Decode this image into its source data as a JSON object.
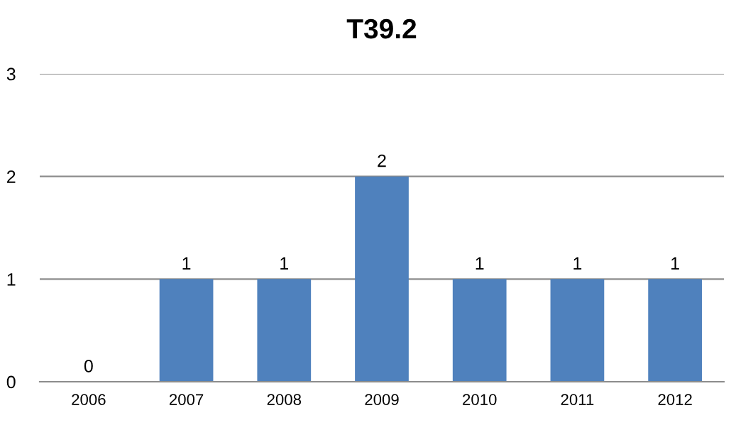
{
  "chart_data": {
    "type": "bar",
    "title": "T39.2",
    "categories": [
      "2006",
      "2007",
      "2008",
      "2009",
      "2010",
      "2011",
      "2012"
    ],
    "values": [
      0,
      1,
      1,
      2,
      1,
      1,
      1
    ],
    "color": "#4f81bd",
    "ylim": [
      0,
      3
    ],
    "yticks": [
      0,
      1,
      2,
      3
    ],
    "grid": "y",
    "data_labels": true
  }
}
